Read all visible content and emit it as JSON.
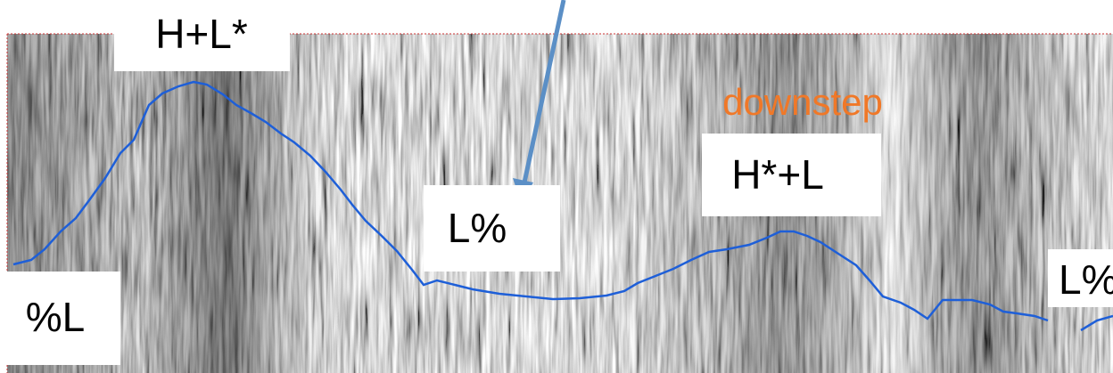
{
  "labels": [
    "H+L*",
    "%L",
    "L%",
    "H*+L",
    "L%",
    "downstep"
  ]
}
